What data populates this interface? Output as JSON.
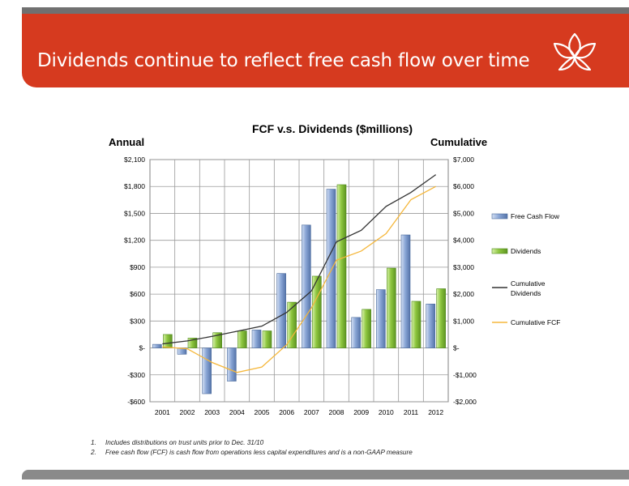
{
  "slide": {
    "title": "Dividends continue to reflect free cash flow over time",
    "accent_color": "#d63a1f",
    "logo_icon": "flower-logo-icon"
  },
  "footnotes": [
    {
      "num": "1.",
      "text": "Includes distributions  on trust units prior to Dec. 31/10"
    },
    {
      "num": "2.",
      "text": "Free cash flow (FCF) is cash flow from operations  less capital expenditures and is a non-GAAP measure"
    }
  ],
  "chart_data": {
    "type": "bar",
    "title": "FCF v.s. Dividends ($millions)",
    "ylabel": "Annual",
    "y2label": "Cumulative",
    "categories": [
      "2001",
      "2002",
      "2003",
      "2004",
      "2005",
      "2006",
      "2007",
      "2008",
      "2009",
      "2010",
      "2011",
      "2012"
    ],
    "ylim": [
      -600,
      2100
    ],
    "y2lim": [
      -2000,
      7000
    ],
    "y_ticks": [
      -600,
      -300,
      0,
      300,
      600,
      900,
      1200,
      1500,
      1800,
      2100
    ],
    "y_tick_labels": [
      "-$600",
      "-$300",
      "$-",
      "$300",
      "$600",
      "$900",
      "$1,200",
      "$1,500",
      "$1,800",
      "$2,100"
    ],
    "y2_ticks": [
      -2000,
      -1000,
      0,
      1000,
      2000,
      3000,
      4000,
      5000,
      6000,
      7000
    ],
    "y2_tick_labels": [
      "-$2,000",
      "-$1,000",
      "$-",
      "$1,000",
      "$2,000",
      "$3,000",
      "$4,000",
      "$5,000",
      "$6,000",
      "$7,000"
    ],
    "grid": true,
    "legend_position": "right",
    "series": [
      {
        "name": "Free Cash Flow",
        "kind": "bar",
        "axis": "left",
        "color": "#7f9ccf",
        "values": [
          40,
          -70,
          -510,
          -370,
          200,
          830,
          1370,
          1770,
          340,
          650,
          1260,
          490
        ]
      },
      {
        "name": "Dividends",
        "kind": "bar",
        "axis": "left",
        "color": "#8dc63f",
        "values": [
          150,
          110,
          170,
          190,
          190,
          510,
          800,
          1820,
          430,
          890,
          520,
          660
        ]
      },
      {
        "name": "Cumulative Dividends",
        "kind": "line",
        "axis": "right",
        "color": "#333333",
        "values": [
          150,
          260,
          430,
          620,
          810,
          1320,
          2120,
          3940,
          4370,
          5260,
          5780,
          6440
        ]
      },
      {
        "name": "Cumulative FCF",
        "kind": "line",
        "axis": "right",
        "color": "#f5b73b",
        "values": [
          40,
          -30,
          -540,
          -910,
          -710,
          120,
          1490,
          3260,
          3600,
          4250,
          5510,
          6000
        ]
      }
    ]
  }
}
